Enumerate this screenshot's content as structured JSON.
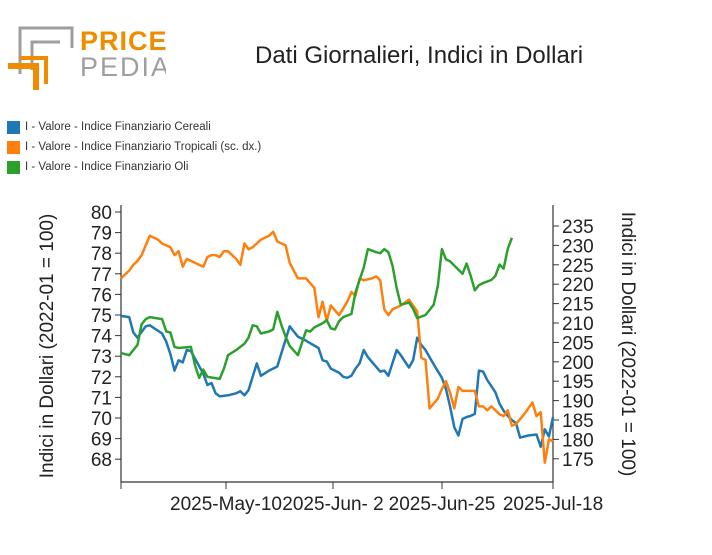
{
  "logo": {
    "line1": "PRICE",
    "line2": "PEDIA",
    "accent_color": "#f08c00",
    "secondary_color": "#9e9e9e"
  },
  "title": "Dati Giornalieri, Indici in Dollari",
  "legend": [
    {
      "label": "I - Valore - Indice Finanziario Cereali",
      "color": "#1f77b4"
    },
    {
      "label": "I - Valore - Indice Finanziario Tropicali (sc. dx.)",
      "color": "#ff7f0e"
    },
    {
      "label": "I - Valore - Indice Finanziario Oli",
      "color": "#2ca02c"
    }
  ],
  "chart_data": {
    "type": "line",
    "title": "Dati Giornalieri, Indici in Dollari",
    "x_tick_labels": [
      "2025-May-10",
      "2025-Jun- 2",
      "2025-Jun-25",
      "2025-Jul-18"
    ],
    "x_range": [
      "2025-Apr-14",
      "2025-Jul-18"
    ],
    "y_left": {
      "label": "Indici in Dollari (2022-01 = 100)",
      "range": [
        67,
        80
      ],
      "ticks": [
        68,
        69,
        70,
        71,
        72,
        73,
        74,
        75,
        76,
        77,
        78,
        79,
        80
      ]
    },
    "y_right": {
      "label": "Indici in Dollari (2022-01 = 100)",
      "range": [
        170,
        237
      ],
      "ticks": [
        175,
        180,
        185,
        190,
        195,
        200,
        205,
        210,
        215,
        220,
        225,
        230,
        235
      ]
    },
    "grid": false,
    "legend_position": "top-left",
    "series": [
      {
        "name": "I - Valore - Indice Finanziario Cereali",
        "axis": "left",
        "color": "#1f77b4",
        "points": [
          [
            "2025-04-14",
            74.95
          ],
          [
            "2025-04-16",
            74.9
          ],
          [
            "2025-04-17",
            74.15
          ],
          [
            "2025-04-18",
            73.9
          ],
          [
            "2025-04-20",
            74.45
          ],
          [
            "2025-04-21",
            74.5
          ],
          [
            "2025-04-24",
            74.1
          ],
          [
            "2025-04-25",
            73.7
          ],
          [
            "2025-04-26",
            73.1
          ],
          [
            "2025-04-27",
            72.3
          ],
          [
            "2025-04-28",
            72.8
          ],
          [
            "2025-04-29",
            72.7
          ],
          [
            "2025-04-30",
            73.3
          ],
          [
            "2025-05-01",
            73.25
          ],
          [
            "2025-05-04",
            72.15
          ],
          [
            "2025-05-05",
            71.6
          ],
          [
            "2025-05-06",
            71.7
          ],
          [
            "2025-05-07",
            71.2
          ],
          [
            "2025-05-08",
            71.05
          ],
          [
            "2025-05-10",
            71.1
          ],
          [
            "2025-05-12",
            71.2
          ],
          [
            "2025-05-13",
            71.3
          ],
          [
            "2025-05-14",
            71.1
          ],
          [
            "2025-05-15",
            71.35
          ],
          [
            "2025-05-17",
            72.65
          ],
          [
            "2025-05-18",
            72.05
          ],
          [
            "2025-05-20",
            72.3
          ],
          [
            "2025-05-22",
            72.5
          ],
          [
            "2025-05-25",
            74.45
          ],
          [
            "2025-05-26",
            74.2
          ],
          [
            "2025-05-27",
            73.95
          ],
          [
            "2025-05-29",
            73.75
          ],
          [
            "2025-06-01",
            73.4
          ],
          [
            "2025-06-02",
            72.8
          ],
          [
            "2025-06-03",
            72.75
          ],
          [
            "2025-06-04",
            72.4
          ],
          [
            "2025-06-06",
            72.2
          ],
          [
            "2025-06-07",
            72.0
          ],
          [
            "2025-06-08",
            71.95
          ],
          [
            "2025-06-09",
            72.05
          ],
          [
            "2025-06-10",
            72.4
          ],
          [
            "2025-06-11",
            72.65
          ],
          [
            "2025-06-12",
            73.3
          ],
          [
            "2025-06-13",
            72.95
          ],
          [
            "2025-06-16",
            72.25
          ],
          [
            "2025-06-17",
            72.3
          ],
          [
            "2025-06-18",
            72.05
          ],
          [
            "2025-06-20",
            73.3
          ],
          [
            "2025-06-21",
            73.05
          ],
          [
            "2025-06-22",
            72.75
          ],
          [
            "2025-06-23",
            72.45
          ],
          [
            "2025-06-24",
            72.8
          ],
          [
            "2025-06-25",
            73.9
          ],
          [
            "2025-06-26",
            73.55
          ],
          [
            "2025-06-27",
            73.3
          ],
          [
            "2025-06-29",
            72.6
          ],
          [
            "2025-07-01",
            71.95
          ],
          [
            "2025-07-02",
            71.4
          ],
          [
            "2025-07-03",
            70.55
          ],
          [
            "2025-07-04",
            69.55
          ],
          [
            "2025-07-05",
            69.15
          ],
          [
            "2025-07-06",
            69.95
          ],
          [
            "2025-07-07",
            70.05
          ],
          [
            "2025-07-08",
            70.1
          ],
          [
            "2025-07-09",
            70.2
          ],
          [
            "2025-07-10",
            72.3
          ],
          [
            "2025-07-11",
            72.25
          ],
          [
            "2025-07-12",
            71.85
          ],
          [
            "2025-07-14",
            71.25
          ],
          [
            "2025-07-15",
            70.7
          ],
          [
            "2025-07-16",
            70.35
          ],
          [
            "2025-07-17",
            70.1
          ],
          [
            "2025-07-18",
            69.9
          ],
          [
            "2025-07-19",
            69.75
          ],
          [
            "2025-07-20",
            69.05
          ],
          [
            "2025-07-22",
            69.15
          ],
          [
            "2025-07-24",
            69.2
          ],
          [
            "2025-07-25",
            68.6
          ],
          [
            "2025-07-26",
            69.45
          ],
          [
            "2025-07-27",
            69.1
          ],
          [
            "2025-07-28",
            70.05
          ]
        ]
      },
      {
        "name": "I - Valore - Indice Finanziario Tropicali (sc. dx.)",
        "axis": "right",
        "color": "#ff7f0e",
        "points": [
          [
            "2025-04-14",
            221.5
          ],
          [
            "2025-04-16",
            223.5
          ],
          [
            "2025-04-17",
            225.0
          ],
          [
            "2025-04-18",
            226.0
          ],
          [
            "2025-04-19",
            227.5
          ],
          [
            "2025-04-20",
            230.0
          ],
          [
            "2025-04-21",
            232.5
          ],
          [
            "2025-04-23",
            231.5
          ],
          [
            "2025-04-24",
            230.5
          ],
          [
            "2025-04-26",
            229.5
          ],
          [
            "2025-04-27",
            227.5
          ],
          [
            "2025-04-28",
            228.5
          ],
          [
            "2025-04-29",
            224.5
          ],
          [
            "2025-04-30",
            226.5
          ],
          [
            "2025-05-01",
            226.0
          ],
          [
            "2025-05-04",
            224.5
          ],
          [
            "2025-05-05",
            227.0
          ],
          [
            "2025-05-06",
            227.5
          ],
          [
            "2025-05-07",
            227.5
          ],
          [
            "2025-05-08",
            227.0
          ],
          [
            "2025-05-09",
            228.5
          ],
          [
            "2025-05-10",
            228.5
          ],
          [
            "2025-05-12",
            226.5
          ],
          [
            "2025-05-13",
            225.0
          ],
          [
            "2025-05-14",
            230.5
          ],
          [
            "2025-05-15",
            229.0
          ],
          [
            "2025-05-16",
            229.5
          ],
          [
            "2025-05-17",
            230.5
          ],
          [
            "2025-05-18",
            231.5
          ],
          [
            "2025-05-20",
            232.5
          ],
          [
            "2025-05-21",
            233.5
          ],
          [
            "2025-05-22",
            231.0
          ],
          [
            "2025-05-23",
            230.5
          ],
          [
            "2025-05-24",
            230.0
          ],
          [
            "2025-05-25",
            225.5
          ],
          [
            "2025-05-27",
            221.5
          ],
          [
            "2025-05-29",
            221.5
          ],
          [
            "2025-05-31",
            219.0
          ],
          [
            "2025-06-01",
            211.5
          ],
          [
            "2025-06-02",
            215.5
          ],
          [
            "2025-06-03",
            210.5
          ],
          [
            "2025-06-04",
            214.5
          ],
          [
            "2025-06-06",
            212.0
          ],
          [
            "2025-06-08",
            215.5
          ],
          [
            "2025-06-09",
            218.0
          ],
          [
            "2025-06-10",
            217.0
          ],
          [
            "2025-06-11",
            221.5
          ],
          [
            "2025-06-12",
            221.0
          ],
          [
            "2025-06-14",
            221.5
          ],
          [
            "2025-06-15",
            222.0
          ],
          [
            "2025-06-16",
            221.0
          ],
          [
            "2025-06-17",
            213.5
          ],
          [
            "2025-06-18",
            212.0
          ],
          [
            "2025-06-19",
            213.5
          ],
          [
            "2025-06-21",
            214.5
          ],
          [
            "2025-06-23",
            216.0
          ],
          [
            "2025-06-25",
            213.0
          ],
          [
            "2025-06-26",
            201.0
          ],
          [
            "2025-06-27",
            200.5
          ],
          [
            "2025-06-28",
            188.0
          ],
          [
            "2025-06-30",
            190.5
          ],
          [
            "2025-07-01",
            193.0
          ],
          [
            "2025-07-02",
            195.0
          ],
          [
            "2025-07-03",
            192.0
          ],
          [
            "2025-07-04",
            188.0
          ],
          [
            "2025-07-05",
            193.5
          ],
          [
            "2025-07-06",
            192.5
          ],
          [
            "2025-07-08",
            192.5
          ],
          [
            "2025-07-09",
            192.5
          ],
          [
            "2025-07-10",
            188.5
          ],
          [
            "2025-07-11",
            188.5
          ],
          [
            "2025-07-12",
            187.5
          ],
          [
            "2025-07-13",
            188.5
          ],
          [
            "2025-07-15",
            186.5
          ],
          [
            "2025-07-16",
            186.0
          ],
          [
            "2025-07-17",
            187.5
          ],
          [
            "2025-07-18",
            183.5
          ],
          [
            "2025-07-19",
            184.0
          ],
          [
            "2025-07-21",
            186.5
          ],
          [
            "2025-07-23",
            189.5
          ],
          [
            "2025-07-24",
            186.0
          ],
          [
            "2025-07-25",
            187.0
          ],
          [
            "2025-07-26",
            174.0
          ],
          [
            "2025-07-27",
            180.0
          ],
          [
            "2025-07-28",
            179.5
          ]
        ]
      },
      {
        "name": "I - Valore - Indice Finanziario Oli",
        "axis": "left",
        "color": "#2ca02c",
        "points": [
          [
            "2025-04-14",
            73.15
          ],
          [
            "2025-04-16",
            73.05
          ],
          [
            "2025-04-18",
            73.55
          ],
          [
            "2025-04-19",
            74.55
          ],
          [
            "2025-04-20",
            74.8
          ],
          [
            "2025-04-21",
            74.9
          ],
          [
            "2025-04-24",
            74.8
          ],
          [
            "2025-04-25",
            74.2
          ],
          [
            "2025-04-26",
            74.15
          ],
          [
            "2025-04-27",
            73.45
          ],
          [
            "2025-04-28",
            73.4
          ],
          [
            "2025-05-01",
            73.45
          ],
          [
            "2025-05-02",
            72.55
          ],
          [
            "2025-05-03",
            71.95
          ],
          [
            "2025-05-04",
            72.35
          ],
          [
            "2025-05-05",
            72.0
          ],
          [
            "2025-05-08",
            71.9
          ],
          [
            "2025-05-09",
            72.4
          ],
          [
            "2025-05-10",
            73.05
          ],
          [
            "2025-05-12",
            73.3
          ],
          [
            "2025-05-14",
            73.6
          ],
          [
            "2025-05-15",
            73.9
          ],
          [
            "2025-05-16",
            74.5
          ],
          [
            "2025-05-17",
            74.45
          ],
          [
            "2025-05-18",
            74.1
          ],
          [
            "2025-05-20",
            74.2
          ],
          [
            "2025-05-21",
            74.3
          ],
          [
            "2025-05-22",
            75.15
          ],
          [
            "2025-05-23",
            74.5
          ],
          [
            "2025-05-24",
            73.95
          ],
          [
            "2025-05-25",
            73.5
          ],
          [
            "2025-05-27",
            73.05
          ],
          [
            "2025-05-29",
            74.25
          ],
          [
            "2025-05-30",
            74.2
          ],
          [
            "2025-05-31",
            74.4
          ],
          [
            "2025-06-02",
            74.6
          ],
          [
            "2025-06-03",
            74.75
          ],
          [
            "2025-06-04",
            74.35
          ],
          [
            "2025-06-05",
            74.3
          ],
          [
            "2025-06-06",
            74.7
          ],
          [
            "2025-06-07",
            74.9
          ],
          [
            "2025-06-09",
            75.05
          ],
          [
            "2025-06-10",
            76.1
          ],
          [
            "2025-06-11",
            76.7
          ],
          [
            "2025-06-12",
            77.3
          ],
          [
            "2025-06-13",
            78.2
          ],
          [
            "2025-06-15",
            78.05
          ],
          [
            "2025-06-16",
            78.0
          ],
          [
            "2025-06-17",
            78.2
          ],
          [
            "2025-06-18",
            78.05
          ],
          [
            "2025-06-19",
            77.4
          ],
          [
            "2025-06-20",
            76.3
          ],
          [
            "2025-06-21",
            75.5
          ],
          [
            "2025-06-23",
            75.6
          ],
          [
            "2025-06-24",
            75.3
          ],
          [
            "2025-06-25",
            74.85
          ],
          [
            "2025-06-27",
            75.0
          ],
          [
            "2025-06-28",
            75.25
          ],
          [
            "2025-06-29",
            75.5
          ],
          [
            "2025-06-30",
            76.4
          ],
          [
            "2025-07-01",
            78.2
          ],
          [
            "2025-07-02",
            77.7
          ],
          [
            "2025-07-03",
            77.6
          ],
          [
            "2025-07-06",
            77.0
          ],
          [
            "2025-07-07",
            77.5
          ],
          [
            "2025-07-08",
            76.9
          ],
          [
            "2025-07-09",
            76.2
          ],
          [
            "2025-07-10",
            76.45
          ],
          [
            "2025-07-11",
            76.55
          ],
          [
            "2025-07-13",
            76.7
          ],
          [
            "2025-07-14",
            76.9
          ],
          [
            "2025-07-15",
            77.45
          ],
          [
            "2025-07-16",
            77.25
          ],
          [
            "2025-07-17",
            78.2
          ],
          [
            "2025-07-18",
            78.75
          ]
        ]
      }
    ]
  }
}
